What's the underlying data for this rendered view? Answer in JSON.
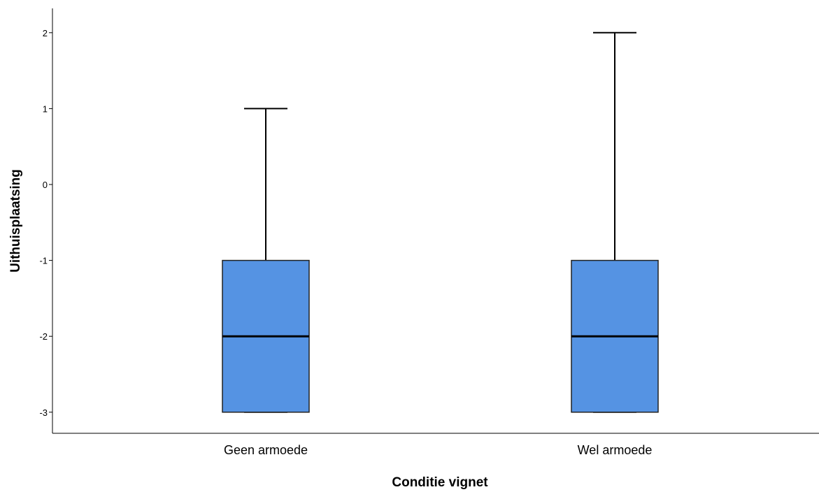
{
  "chart_data": {
    "type": "boxplot",
    "title": "",
    "xlabel": "Conditie vignet",
    "ylabel": "Uithuisplaatsing",
    "categories": [
      "Geen armoede",
      "Wel armoede"
    ],
    "boxes": [
      {
        "category": "Geen armoede",
        "min": -3,
        "q1": -3,
        "median": -2,
        "q3": -1,
        "max": 1
      },
      {
        "category": "Wel armoede",
        "min": -3,
        "q1": -3,
        "median": -2,
        "q3": -1,
        "max": 2
      }
    ],
    "yticks": [
      -3,
      -2,
      -1,
      0,
      1,
      2
    ],
    "ytick_labels": [
      "-3",
      "-2",
      "-1",
      "0",
      "1",
      "2"
    ],
    "ylim": [
      -3.28,
      2.32
    ],
    "grid": false,
    "box_color": "#5593e3"
  }
}
